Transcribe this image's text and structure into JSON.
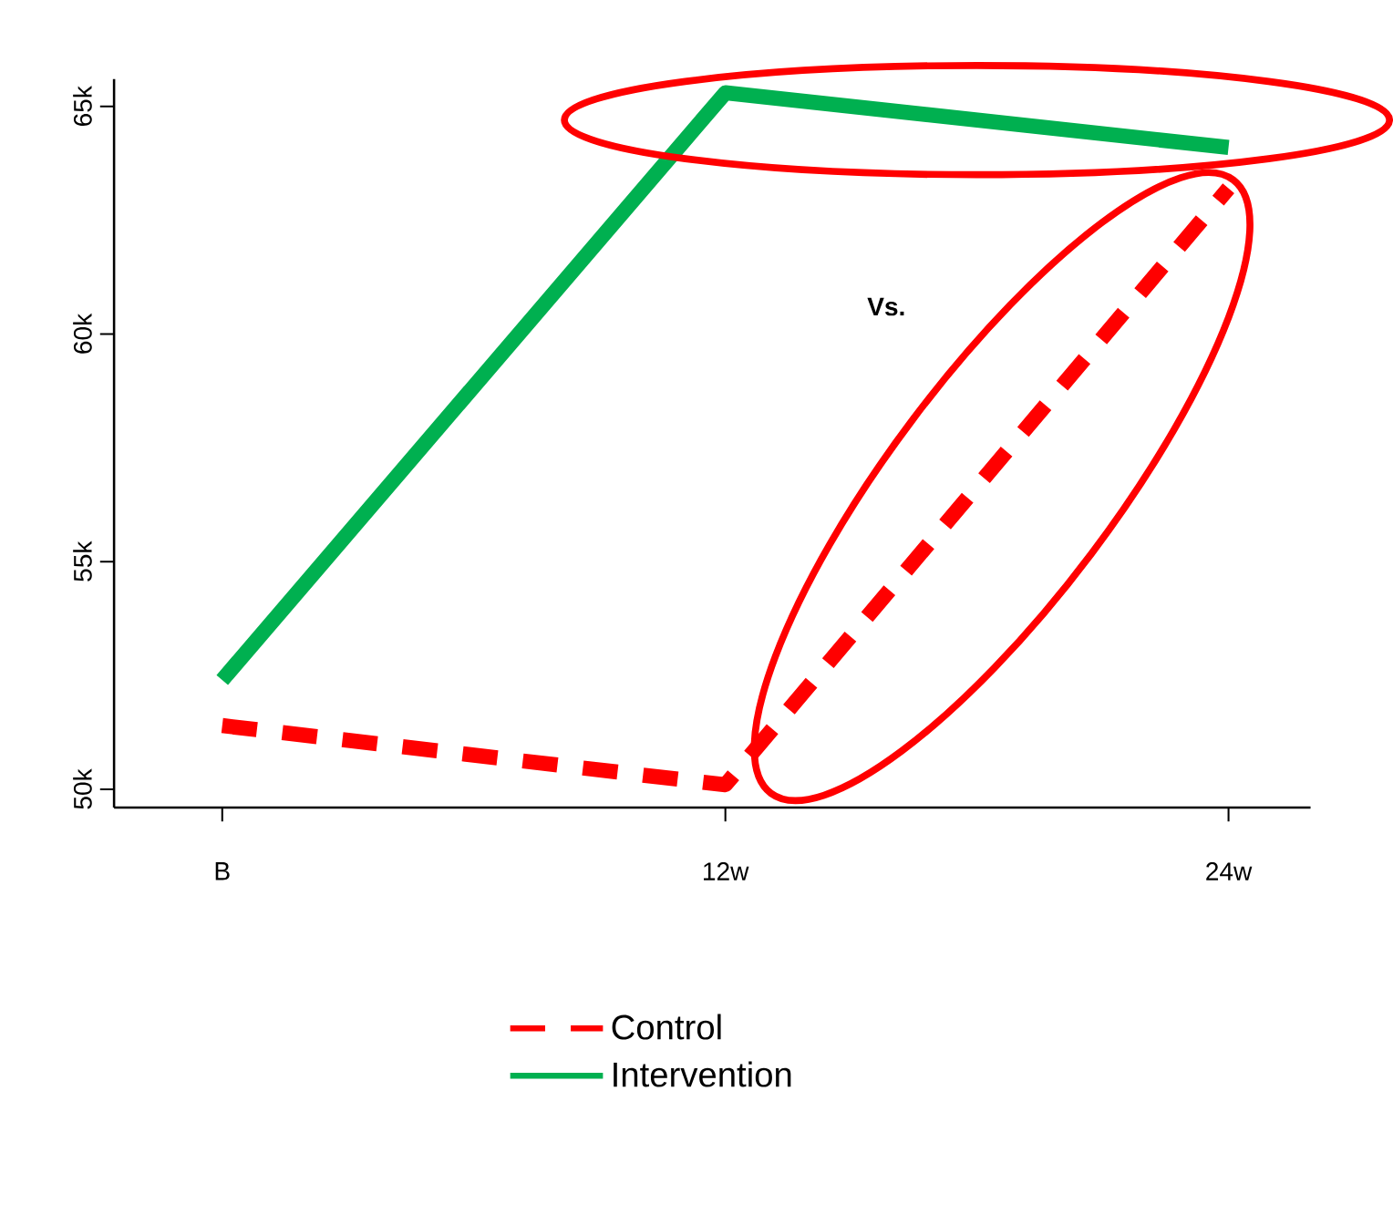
{
  "chart_data": {
    "type": "line",
    "categories": [
      "B",
      "12w",
      "24w"
    ],
    "series": [
      {
        "name": "Control",
        "color": "#ff0000",
        "line_style": "dashed",
        "values": [
          51400,
          50100,
          63200
        ]
      },
      {
        "name": "Intervention",
        "color": "#00b050",
        "line_style": "solid",
        "values": [
          52400,
          65300,
          64100
        ]
      }
    ],
    "ylim": [
      49600,
      65600
    ],
    "yticks": [
      {
        "value": 50000,
        "label": "50k"
      },
      {
        "value": 55000,
        "label": "55k"
      },
      {
        "value": 60000,
        "label": "60k"
      },
      {
        "value": 65000,
        "label": "65k"
      }
    ],
    "annotations": [
      "Vs."
    ],
    "marker": "none",
    "grid": false,
    "legend": "bottom"
  }
}
